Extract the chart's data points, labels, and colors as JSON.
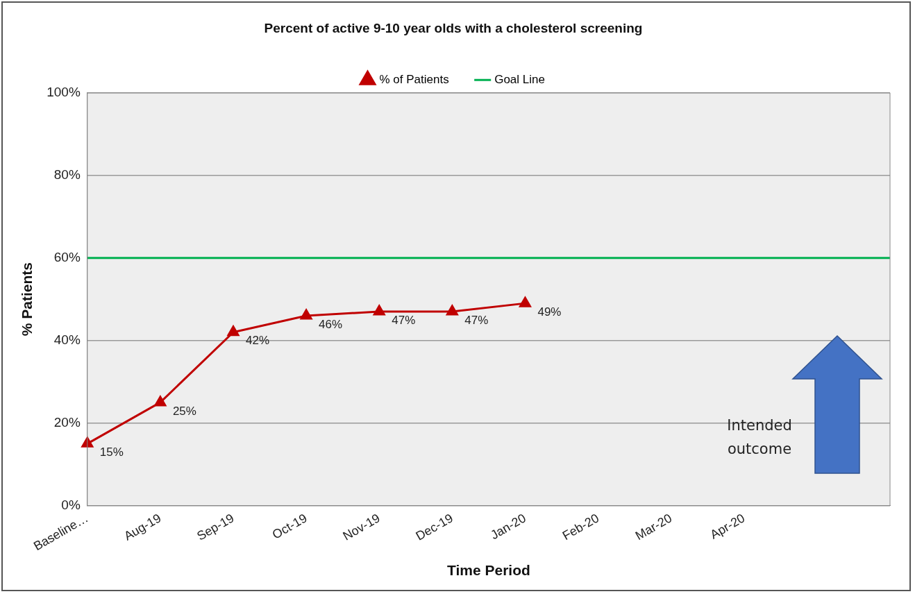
{
  "chart_data": {
    "type": "line",
    "title": "Percent of active 9-10 year olds with a cholesterol screening",
    "xlabel": "Time Period",
    "ylabel": "% Patients",
    "categories": [
      "Baseline…",
      "Aug-19",
      "Sep-19",
      "Oct-19",
      "Nov-19",
      "Dec-19",
      "Jan-20",
      "Feb-20",
      "Mar-20",
      "Apr-20",
      null,
      null
    ],
    "series": [
      {
        "name": "% of Patients",
        "color": "#c00000",
        "marker": "triangle",
        "values": [
          15,
          25,
          42,
          46,
          47,
          47,
          49,
          null,
          null,
          null,
          null,
          null
        ],
        "value_labels": [
          "15%",
          "25%",
          "42%",
          "46%",
          "47%",
          "47%",
          "49%",
          null,
          null,
          null,
          null,
          null
        ]
      },
      {
        "name": "Goal Line",
        "color": "#00b050",
        "marker": "none",
        "values": [
          60,
          60,
          60,
          60,
          60,
          60,
          60,
          60,
          60,
          60,
          60,
          60
        ]
      }
    ],
    "ylim": [
      0,
      100
    ],
    "yticks": [
      {
        "value": 0,
        "label": "0%"
      },
      {
        "value": 20,
        "label": "20%"
      },
      {
        "value": 40,
        "label": "40%"
      },
      {
        "value": 60,
        "label": "60%"
      },
      {
        "value": 80,
        "label": "80%"
      },
      {
        "value": 100,
        "label": "100%"
      }
    ],
    "grid": "y",
    "legend": "top",
    "line_style": "solid",
    "annotations": [
      "Intended outcome"
    ]
  }
}
